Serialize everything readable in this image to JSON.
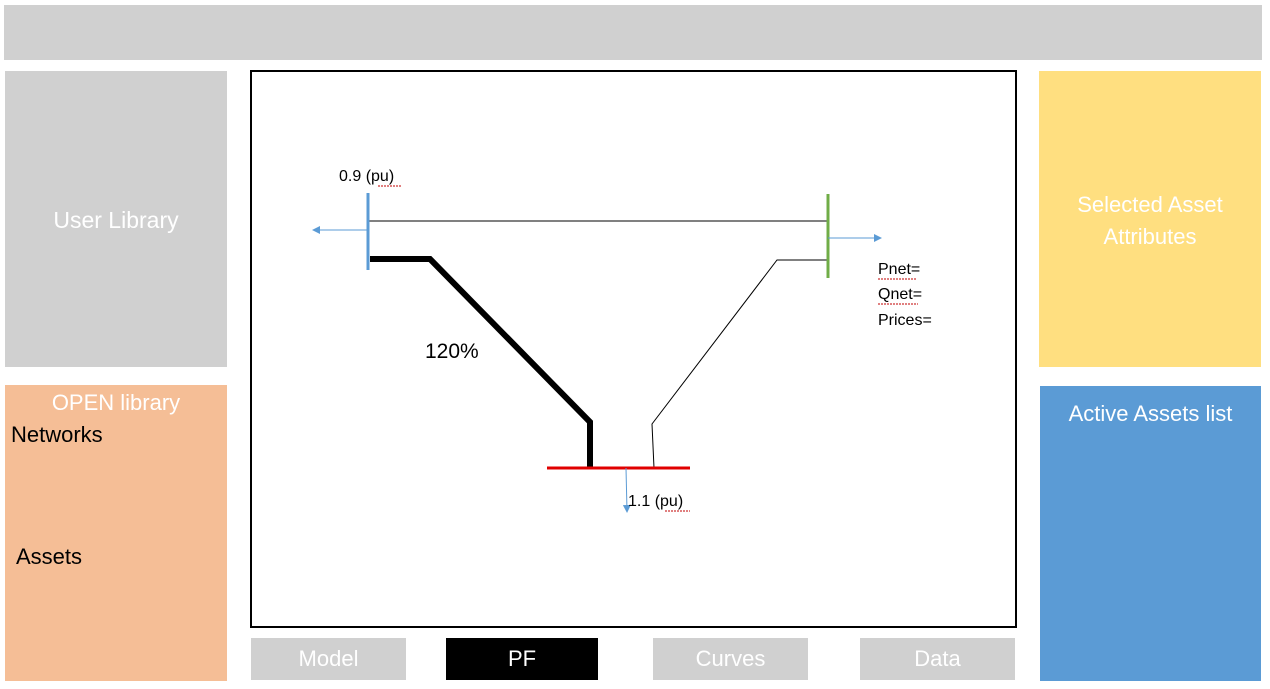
{
  "panels": {
    "user_library": "User Library",
    "open_library": {
      "title": "OPEN library",
      "networks": "Networks",
      "assets": "Assets"
    },
    "selected_asset": "Selected Asset Attributes",
    "active_assets": "Active Assets list"
  },
  "tabs": [
    {
      "label": "Model"
    },
    {
      "label": "PF"
    },
    {
      "label": "Curves"
    },
    {
      "label": "Data"
    }
  ],
  "active_tab": "PF",
  "diagram": {
    "bus_left_voltage": "0.9 (pu)",
    "bus_bottom_voltage": "1.1 (pu)",
    "line_loading": "120%",
    "bus_right_info": [
      "Pnet=",
      "Qnet=",
      "Prices="
    ],
    "colors": {
      "bus_left": "#5b9bd5",
      "bus_right": "#70ad47",
      "bus_bottom": "#e00000",
      "overloaded_line": "#000000",
      "load_arrow": "#5b9bd5"
    }
  }
}
